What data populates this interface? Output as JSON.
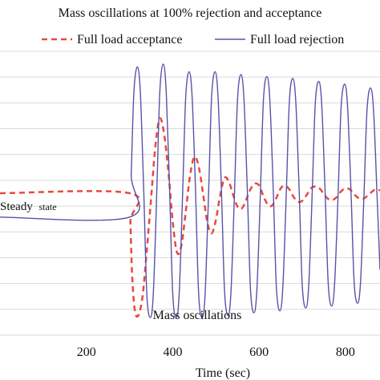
{
  "chart_data": {
    "type": "line",
    "title": "Mass oscillations at 100%  rejection and acceptance",
    "xlabel": "Time (sec)",
    "ylabel": "",
    "xlim": [
      0,
      880
    ],
    "ylim": [
      -1.5,
      1.5
    ],
    "x_ticks": [
      200,
      400,
      600,
      800
    ],
    "y_tick_count": 12,
    "grid": "horizontal",
    "legend": "top",
    "annotations": {
      "steady_main": "Steady",
      "steady_sub": "state",
      "oscillations": "Mass oscillations"
    },
    "series": [
      {
        "name": "Full load acceptance",
        "color": "#e8493f",
        "dash": "dashed",
        "x": [
          0,
          300,
          302,
          306,
          312,
          320,
          330,
          340,
          350,
          360,
          370,
          380,
          390,
          400,
          410,
          420,
          430,
          440,
          450,
          460,
          470,
          480,
          490,
          500,
          510,
          520,
          530,
          540,
          550,
          560,
          570,
          580,
          590,
          600,
          610,
          620,
          630,
          640,
          650,
          660,
          670,
          680,
          690,
          700,
          710,
          720,
          730,
          740,
          750,
          760,
          770,
          780,
          790,
          800,
          810,
          820,
          830,
          840,
          850,
          860,
          870,
          880
        ],
        "y": [
          0.0,
          0.0,
          -0.3,
          -0.85,
          -1.22,
          -1.28,
          -1.08,
          -0.6,
          -0.05,
          0.5,
          0.78,
          0.62,
          0.22,
          -0.3,
          -0.62,
          -0.55,
          -0.2,
          0.18,
          0.38,
          0.28,
          0.0,
          -0.3,
          -0.42,
          -0.28,
          -0.02,
          0.16,
          0.12,
          -0.02,
          -0.14,
          -0.16,
          -0.07,
          0.04,
          0.1,
          0.08,
          -0.03,
          -0.12,
          -0.13,
          -0.05,
          0.05,
          0.08,
          0.04,
          -0.04,
          -0.09,
          -0.08,
          -0.02,
          0.05,
          0.07,
          0.05,
          -0.01,
          -0.06,
          -0.07,
          -0.04,
          0.02,
          0.05,
          0.04,
          -0.01,
          -0.05,
          -0.06,
          -0.03,
          0.01,
          0.04,
          0.03
        ]
      },
      {
        "name": "Full load rejection",
        "color": "#5753a8",
        "dash": "solid",
        "x": [
          0,
          300,
          304,
          310,
          318,
          325,
          333,
          340,
          348,
          355,
          363,
          370,
          378,
          385,
          393,
          400,
          408,
          415,
          423,
          430,
          438,
          445,
          453,
          460,
          468,
          475,
          483,
          490,
          498,
          505,
          513,
          520,
          528,
          535,
          543,
          550,
          558,
          565,
          573,
          580,
          588,
          595,
          603,
          610,
          618,
          625,
          633,
          640,
          648,
          655,
          663,
          670,
          678,
          685,
          693,
          700,
          708,
          715,
          723,
          730,
          738,
          745,
          753,
          760,
          768,
          775,
          783,
          790,
          798,
          805,
          813,
          820,
          828,
          835,
          843,
          850,
          858,
          865,
          873,
          880
        ],
        "y": [
          -0.25,
          -0.25,
          0.2,
          1.05,
          1.32,
          1.05,
          0.0,
          -1.05,
          -1.3,
          -1.05,
          0.0,
          1.05,
          1.35,
          1.05,
          0.0,
          -1.05,
          -1.3,
          -1.05,
          0.0,
          1.0,
          1.27,
          1.0,
          0.0,
          -1.05,
          -1.3,
          -1.05,
          0.0,
          1.0,
          1.27,
          1.0,
          0.0,
          -1.02,
          -1.28,
          -1.02,
          0.0,
          0.98,
          1.24,
          0.98,
          0.0,
          -1.0,
          -1.25,
          -1.0,
          0.0,
          0.97,
          1.22,
          0.97,
          0.0,
          -0.98,
          -1.23,
          -0.98,
          0.0,
          0.95,
          1.2,
          0.95,
          0.0,
          -0.96,
          -1.2,
          -0.96,
          0.0,
          0.93,
          1.17,
          0.93,
          0.0,
          -0.94,
          -1.18,
          -0.94,
          0.0,
          0.9,
          1.14,
          0.9,
          0.0,
          -0.92,
          -1.15,
          -0.92,
          0.0,
          0.87,
          1.1,
          0.87,
          0.0,
          -0.8
        ]
      }
    ]
  }
}
